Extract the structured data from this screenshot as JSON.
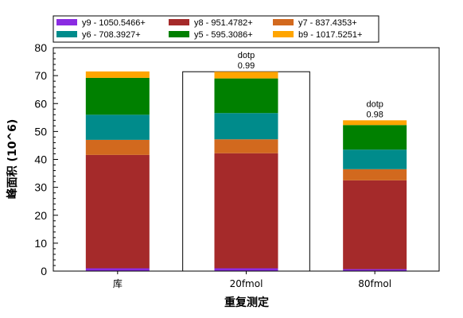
{
  "chart_data": {
    "type": "bar",
    "stacked": true,
    "xlabel": "重复测定",
    "ylabel": "峰面积 (10^6)",
    "ylim": [
      0,
      80
    ],
    "yticks": [
      0,
      10,
      20,
      30,
      40,
      50,
      60,
      70,
      80
    ],
    "categories": [
      "库",
      "20fmol",
      "80fmol"
    ],
    "series": [
      {
        "name": "y9 - 1050.5466+",
        "color": "#8a2be2",
        "values": [
          1.0,
          1.0,
          0.7
        ]
      },
      {
        "name": "y8 - 951.4782+",
        "color": "#a52a2a",
        "values": [
          40.6,
          41.2,
          31.8
        ]
      },
      {
        "name": "y7 - 837.4353+",
        "color": "#d2691e",
        "values": [
          5.4,
          5.0,
          4.0
        ]
      },
      {
        "name": "y6 - 708.3927+",
        "color": "#008b8b",
        "values": [
          9.0,
          9.4,
          7.0
        ]
      },
      {
        "name": "y5 - 595.3086+",
        "color": "#008000",
        "values": [
          13.2,
          12.4,
          8.8
        ]
      },
      {
        "name": "b9 - 1017.5251+",
        "color": "#ffa500",
        "values": [
          2.3,
          2.4,
          1.7
        ]
      }
    ],
    "annotations": [
      {
        "category": "20fmol",
        "label": "dotp",
        "value": "0.99"
      },
      {
        "category": "80fmol",
        "label": "dotp",
        "value": "0.98"
      }
    ],
    "selected_category": "20fmol",
    "legend_position": "top"
  }
}
